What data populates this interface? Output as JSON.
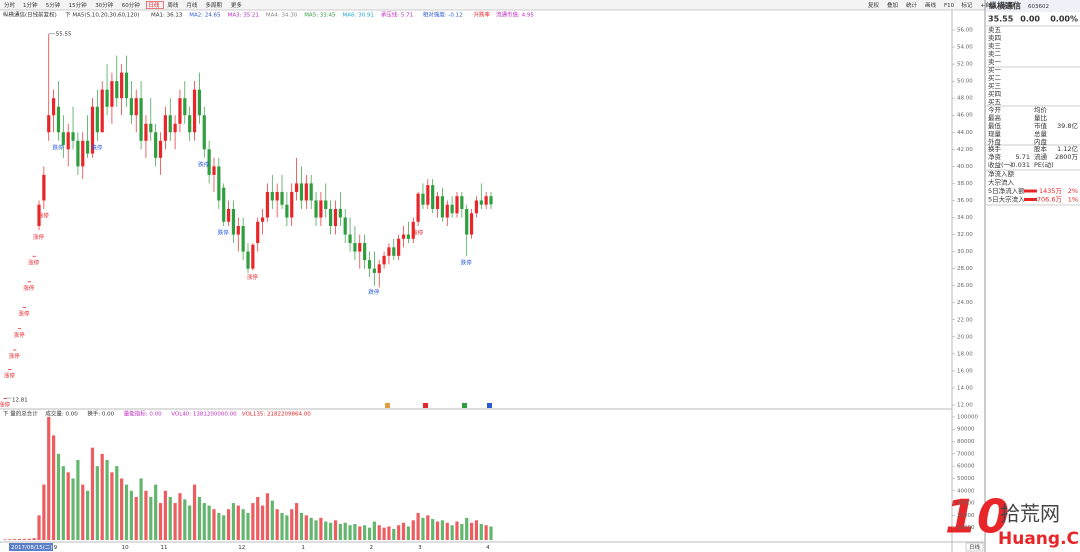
{
  "toolbar": {
    "tabs": [
      "分时",
      "1分钟",
      "5分钟",
      "15分钟",
      "30分钟",
      "60分钟",
      "日线",
      "周线",
      "月线",
      "多周期",
      "更多"
    ],
    "active": "日线",
    "tools": [
      "复权",
      "叠加",
      "统计",
      "画线",
      "F10",
      "标记",
      "+自选",
      "返回"
    ],
    "footer_period": "日线"
  },
  "legend": [
    {
      "text": "纵横通信(日线前复权)",
      "color": "#333333"
    },
    {
      "text": "下 MA5(5,10,20,30,60,120)",
      "color": "#333333"
    },
    {
      "text": "MA1: 36.13",
      "color": "#333333"
    },
    {
      "text": "MA2: 24.65",
      "color": "#2a5bd7"
    },
    {
      "text": "MA3: 35.21",
      "color": "#c02cc0"
    },
    {
      "text": "MA4: 34.30",
      "color": "#888888"
    },
    {
      "text": "MA5: 33.45",
      "color": "#2e9e3e"
    },
    {
      "text": "MA6: 30.91",
      "color": "#22aacc"
    },
    {
      "text": "承压线: 5.71",
      "color": "#c02cc0"
    },
    {
      "text": "相对强度: -0.12",
      "color": "#2a5bd7"
    },
    {
      "text": "升跌率",
      "color": "#e8262a"
    },
    {
      "text": "流通市值: 4.95",
      "color": "#c02cc0"
    }
  ],
  "volume_legend": [
    {
      "text": "下 量的总合计",
      "color": "#333333"
    },
    {
      "text": "成交量: 0.00",
      "color": "#333333"
    },
    {
      "text": "换手: 0.00",
      "color": "#333333"
    },
    {
      "text": "量能指标: 0.00",
      "color": "#c02cc0"
    },
    {
      "text": "VOL40: 1381200000.00",
      "color": "#c02cc0"
    },
    {
      "text": "VOL135: 2182209864.00",
      "color": "#e8262a"
    }
  ],
  "chart_data": [
    {
      "type": "candlestick",
      "up_color": "#e8262a",
      "down_color": "#2e9e3e",
      "grid": false,
      "ylim": [
        12,
        56
      ],
      "yticks": [
        {
          "value": 12,
          "label": "12.00"
        },
        {
          "value": 14,
          "label": "14.00"
        },
        {
          "value": 16,
          "label": "16.00"
        },
        {
          "value": 18,
          "label": "18.00"
        },
        {
          "value": 20,
          "label": "20.00"
        },
        {
          "value": 22,
          "label": "22.00"
        },
        {
          "value": 24,
          "label": "24.00"
        },
        {
          "value": 26,
          "label": "26.00"
        },
        {
          "value": 28,
          "label": "28.00"
        },
        {
          "value": 30,
          "label": "30.00"
        },
        {
          "value": 32,
          "label": "32.00"
        },
        {
          "value": 34,
          "label": "34.00"
        },
        {
          "value": 36,
          "label": "36.00"
        },
        {
          "value": 38,
          "label": "38.00"
        },
        {
          "value": 40,
          "label": "40.00"
        },
        {
          "value": 42,
          "label": "42.00"
        },
        {
          "value": 44,
          "label": "44.00"
        },
        {
          "value": 46,
          "label": "46.00"
        },
        {
          "value": 48,
          "label": "48.00"
        },
        {
          "value": 50,
          "label": "50.00"
        },
        {
          "value": 52,
          "label": "52.00"
        },
        {
          "value": 54,
          "label": "54.00"
        },
        {
          "value": 56,
          "label": "56.00"
        }
      ],
      "categories": [
        "2017/08/15(二)",
        null,
        null,
        null,
        null,
        null,
        null,
        null,
        null,
        null,
        "9",
        null,
        null,
        null,
        null,
        null,
        null,
        null,
        null,
        null,
        null,
        null,
        null,
        null,
        "10",
        null,
        null,
        null,
        null,
        null,
        null,
        null,
        "11",
        null,
        null,
        null,
        null,
        null,
        null,
        null,
        null,
        null,
        null,
        null,
        null,
        null,
        null,
        null,
        "12",
        null,
        null,
        null,
        null,
        null,
        null,
        null,
        null,
        null,
        null,
        null,
        null,
        "1",
        null,
        null,
        null,
        null,
        null,
        null,
        null,
        null,
        null,
        null,
        null,
        null,
        null,
        "2",
        null,
        null,
        null,
        null,
        null,
        null,
        null,
        null,
        null,
        "3",
        null,
        null,
        null,
        null,
        null,
        null,
        null,
        null,
        null,
        null,
        null,
        null,
        null,
        "4",
        null
      ],
      "ohlc": [
        [
          12.81,
          12.81,
          12.81,
          12.81
        ],
        [
          16.2,
          16.2,
          16.2,
          16.2
        ],
        [
          18.5,
          18.5,
          18.5,
          18.5
        ],
        [
          21,
          21,
          21,
          21
        ],
        [
          23.5,
          23.5,
          23.5,
          23.5
        ],
        [
          26.5,
          26.5,
          26.5,
          26.5
        ],
        [
          29.5,
          29.5,
          29.5,
          29.5
        ],
        [
          33,
          36,
          32.5,
          35.5
        ],
        [
          36,
          40,
          35,
          39
        ],
        [
          44,
          55.55,
          43,
          46
        ],
        [
          46,
          49,
          44,
          48
        ],
        [
          47,
          50,
          43,
          44
        ],
        [
          44,
          46,
          41,
          42.5
        ],
        [
          42,
          45,
          40,
          44
        ],
        [
          44,
          47,
          42,
          43
        ],
        [
          43,
          44,
          39,
          40
        ],
        [
          40,
          44,
          38.5,
          43
        ],
        [
          43,
          46,
          41,
          41.5
        ],
        [
          41.5,
          48,
          41,
          47
        ],
        [
          47,
          49,
          43,
          44
        ],
        [
          44,
          50,
          44,
          49
        ],
        [
          49,
          52,
          46,
          47
        ],
        [
          47,
          51,
          45,
          50
        ],
        [
          50,
          53,
          47,
          48
        ],
        [
          48,
          52,
          46,
          51
        ],
        [
          51,
          53,
          47,
          48
        ],
        [
          48,
          50,
          45,
          46
        ],
        [
          46,
          49,
          44,
          48
        ],
        [
          48,
          50,
          42,
          43
        ],
        [
          43,
          46,
          41,
          45
        ],
        [
          45,
          48,
          43,
          44
        ],
        [
          44,
          45,
          40,
          41
        ],
        [
          41,
          44,
          39,
          43
        ],
        [
          43,
          47,
          42,
          46
        ],
        [
          46,
          48,
          43,
          44
        ],
        [
          44,
          46,
          42,
          45
        ],
        [
          45,
          49,
          44,
          48
        ],
        [
          48,
          50,
          45,
          46
        ],
        [
          46,
          47,
          43,
          44
        ],
        [
          44,
          50,
          43,
          49
        ],
        [
          49,
          51,
          45,
          46
        ],
        [
          46,
          47,
          41,
          42
        ],
        [
          42,
          43,
          38,
          39
        ],
        [
          39,
          41,
          37,
          40
        ],
        [
          40,
          41,
          35,
          36
        ],
        [
          37.5,
          38,
          33,
          33.5
        ],
        [
          33.5,
          36,
          33,
          35
        ],
        [
          35,
          36,
          31,
          32
        ],
        [
          32,
          34,
          30,
          33
        ],
        [
          33,
          34,
          29,
          30
        ],
        [
          30,
          31,
          27.5,
          28
        ],
        [
          28,
          31,
          27.8,
          30.8
        ],
        [
          31,
          34,
          30,
          33.5
        ],
        [
          33.5,
          35,
          32,
          34
        ],
        [
          34,
          38,
          33.5,
          37
        ],
        [
          37,
          39,
          35,
          36
        ],
        [
          36,
          38,
          34,
          37
        ],
        [
          37,
          39,
          35,
          35.5
        ],
        [
          35.5,
          37,
          33,
          34
        ],
        [
          34,
          38,
          33,
          37
        ],
        [
          37,
          41,
          36,
          38
        ],
        [
          38,
          40,
          35,
          36
        ],
        [
          36,
          39,
          35,
          38
        ],
        [
          38,
          39,
          35,
          36
        ],
        [
          36,
          37,
          33,
          34
        ],
        [
          34,
          37,
          33,
          36
        ],
        [
          36,
          38,
          34,
          35
        ],
        [
          35,
          36,
          32,
          33
        ],
        [
          33,
          36,
          32,
          35
        ],
        [
          35,
          37,
          33,
          34
        ],
        [
          34,
          35,
          31,
          32
        ],
        [
          32,
          34,
          30,
          31
        ],
        [
          31,
          33,
          29,
          30
        ],
        [
          30,
          32,
          28,
          31
        ],
        [
          31,
          32,
          28,
          29
        ],
        [
          29,
          30,
          27,
          28
        ],
        [
          28,
          30,
          26,
          27.5
        ],
        [
          27.5,
          29,
          25.8,
          28.5
        ],
        [
          28.5,
          30,
          28,
          29.5
        ],
        [
          29.5,
          31,
          28.5,
          30.5
        ],
        [
          30.5,
          31.5,
          29,
          29.5
        ],
        [
          29.5,
          32,
          29,
          31.5
        ],
        [
          31.5,
          33,
          30.5,
          32
        ],
        [
          32,
          33.5,
          31,
          31.5
        ],
        [
          31.5,
          34,
          31,
          33.5
        ],
        [
          33.5,
          37,
          33,
          36.8
        ],
        [
          36.8,
          38,
          35,
          35.5
        ],
        [
          35.5,
          38.5,
          35,
          37.8
        ],
        [
          37.8,
          38.5,
          34.5,
          35
        ],
        [
          35,
          37,
          34,
          36.5
        ],
        [
          36.5,
          37.5,
          33.5,
          34
        ],
        [
          34,
          36,
          33,
          35.5
        ],
        [
          35.5,
          36.5,
          34,
          34.5
        ],
        [
          34.5,
          37,
          34,
          36.5
        ],
        [
          36.5,
          37,
          34,
          35
        ],
        [
          35,
          35.5,
          29.5,
          32
        ],
        [
          32,
          35,
          31.5,
          34.5
        ],
        [
          34.5,
          36.5,
          34,
          36
        ],
        [
          36,
          38,
          35,
          35.5
        ],
        [
          35.5,
          37,
          35,
          36.5
        ],
        [
          36.5,
          37,
          35,
          35.55
        ]
      ],
      "max_label": {
        "index": 9,
        "value": 55.55
      },
      "min_label": {
        "index": 0,
        "value": 12.81
      },
      "annotations": [
        {
          "index": 0,
          "text": "涨停",
          "color": "#e8262a"
        },
        {
          "index": 1,
          "text": "涨停",
          "color": "#e8262a"
        },
        {
          "index": 2,
          "text": "涨停",
          "color": "#e8262a"
        },
        {
          "index": 3,
          "text": "涨停",
          "color": "#e8262a"
        },
        {
          "index": 4,
          "text": "涨停",
          "color": "#e8262a"
        },
        {
          "index": 5,
          "text": "涨停",
          "color": "#e8262a"
        },
        {
          "index": 6,
          "text": "涨停",
          "color": "#e8262a"
        },
        {
          "index": 7,
          "text": "涨停",
          "color": "#e8262a"
        },
        {
          "index": 8,
          "text": "涨停",
          "color": "#e8262a"
        },
        {
          "index": 11,
          "text": "跌停",
          "color": "#2a5bd7"
        },
        {
          "index": 19,
          "text": "跌停",
          "color": "#2a5bd7"
        },
        {
          "index": 41,
          "text": "跌停",
          "color": "#2a5bd7"
        },
        {
          "index": 45,
          "text": "跌停",
          "color": "#2a5bd7"
        },
        {
          "index": 51,
          "text": "涨停",
          "color": "#e8262a"
        },
        {
          "index": 76,
          "text": "跌停",
          "color": "#2a5bd7"
        },
        {
          "index": 85,
          "text": "涨停",
          "color": "#e8262a"
        },
        {
          "index": 95,
          "text": "跌停",
          "color": "#2a5bd7"
        }
      ]
    },
    {
      "type": "bar",
      "ylim": [
        0,
        104000
      ],
      "yticks": [
        10000,
        20000,
        30000,
        40000,
        50000,
        60000,
        70000,
        80000,
        90000,
        100000
      ],
      "values": [
        500,
        600,
        700,
        800,
        900,
        1000,
        1500,
        20000,
        45000,
        100000,
        85000,
        70000,
        60000,
        55000,
        50000,
        65000,
        45000,
        40000,
        75000,
        60000,
        70000,
        65000,
        55000,
        60000,
        50000,
        45000,
        40000,
        35000,
        50000,
        40000,
        35000,
        45000,
        30000,
        40000,
        35000,
        30000,
        38000,
        33000,
        28000,
        45000,
        35000,
        30000,
        28000,
        25000,
        22000,
        20000,
        25000,
        30000,
        28000,
        25000,
        22000,
        30000,
        35000,
        28000,
        38000,
        32000,
        25000,
        22000,
        20000,
        25000,
        30000,
        22000,
        20000,
        18000,
        16000,
        18000,
        15000,
        14000,
        16000,
        13000,
        14000,
        12000,
        13000,
        11000,
        12000,
        10000,
        15000,
        12000,
        10000,
        11000,
        9000,
        12000,
        14000,
        11000,
        16000,
        22000,
        18000,
        20000,
        17000,
        15000,
        16000,
        14000,
        12000,
        15000,
        13000,
        18000,
        14000,
        16000,
        13000,
        12000,
        11000
      ]
    }
  ],
  "quote": {
    "name": "纵横通信",
    "code": "603602",
    "price": "35.55",
    "change": "0.00",
    "pct": "0.00%",
    "asks": [
      "卖五",
      "卖四",
      "卖三",
      "卖二",
      "卖一"
    ],
    "bids": [
      "买一",
      "买二",
      "买三",
      "买四",
      "买五"
    ],
    "stats": [
      {
        "l1": "今开",
        "l2": "均价"
      },
      {
        "l1": "最高",
        "l2": "量比"
      },
      {
        "l1": "最低",
        "l2": "市值",
        "v2": "39.8亿"
      },
      {
        "l1": "现量",
        "l2": "总量"
      },
      {
        "l1": "外盘",
        "l2": "内盘"
      }
    ],
    "stats2": [
      {
        "l1": "换手",
        "l2": "股本",
        "v2": "1.12亿"
      },
      {
        "l1": "净资",
        "v1": "5.71",
        "l2": "流通",
        "v2": "2800万"
      },
      {
        "l1": "收益(一)",
        "v1": "-0.031",
        "l2": "PE(动)"
      }
    ],
    "flows": [
      {
        "l1": "净流入额"
      },
      {
        "l1": "大宗流入"
      },
      {
        "l1": "5日净流入额",
        "v1": "1435万",
        "v2": "2%"
      },
      {
        "l1": "5日大宗流入",
        "v1": "706.6万",
        "v2": "1%"
      }
    ]
  },
  "watermark": {
    "logo": "10",
    "name": "拾荒网",
    "site": "Huang.CN"
  }
}
